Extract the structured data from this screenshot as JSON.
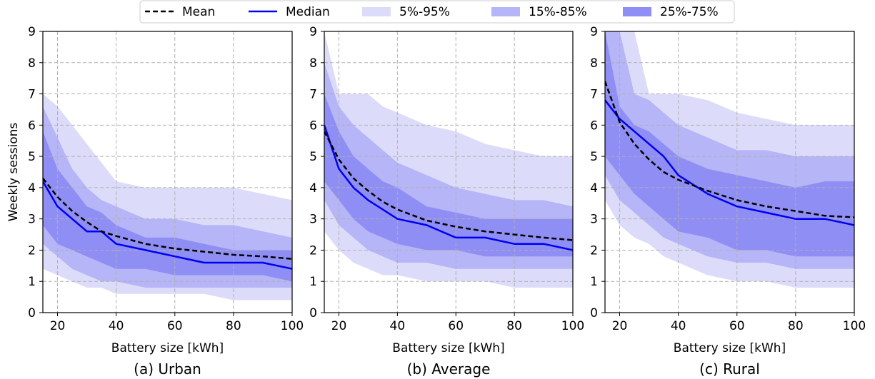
{
  "legend": {
    "placement": "top-center",
    "entries": [
      {
        "key": "mean",
        "label": "Mean",
        "style": "dashed",
        "color": "#000000"
      },
      {
        "key": "median",
        "label": "Median",
        "style": "solid",
        "color": "#0000ee"
      },
      {
        "key": "p5_95",
        "label": "5%-95%",
        "style": "band",
        "color": "#dcdcfa"
      },
      {
        "key": "p15_85",
        "label": "15%-85%",
        "style": "band",
        "color": "#b5b5f7"
      },
      {
        "key": "p25_75",
        "label": "25%-75%",
        "style": "band",
        "color": "#8e8ef4"
      }
    ]
  },
  "colors": {
    "band_5_95": "#dcdcfa",
    "band_15_85": "#b5b5f7",
    "band_25_75": "#8e8ef4",
    "median": "#0000ee",
    "mean": "#000000",
    "grid": "#b0b0b0"
  },
  "chart_data": [
    {
      "type": "area",
      "caption": "(a) Urban",
      "xlabel": "Battery size [kWh]",
      "ylabel": "Weekly sessions",
      "xlim": [
        15,
        100
      ],
      "ylim": [
        0,
        9
      ],
      "xticks": [
        20,
        40,
        60,
        80,
        100
      ],
      "yticks": [
        0,
        1,
        2,
        3,
        4,
        5,
        6,
        7,
        8,
        9
      ],
      "grid": true,
      "x": [
        15,
        20,
        25,
        30,
        35,
        40,
        50,
        60,
        70,
        80,
        90,
        100
      ],
      "mean": [
        4.3,
        3.7,
        3.25,
        2.9,
        2.6,
        2.45,
        2.2,
        2.05,
        1.95,
        1.85,
        1.8,
        1.72
      ],
      "median": [
        4.2,
        3.4,
        3.0,
        2.6,
        2.6,
        2.2,
        2.0,
        1.8,
        1.6,
        1.6,
        1.6,
        1.4
      ],
      "band_5_95": {
        "lower": [
          1.4,
          1.2,
          1.0,
          0.8,
          0.8,
          0.6,
          0.6,
          0.6,
          0.6,
          0.4,
          0.4,
          0.4
        ],
        "upper": [
          7.0,
          6.6,
          6.0,
          5.4,
          4.8,
          4.2,
          4.0,
          4.0,
          4.0,
          4.0,
          3.8,
          3.6
        ]
      },
      "band_15_85": {
        "lower": [
          2.2,
          1.8,
          1.4,
          1.2,
          1.0,
          1.0,
          0.8,
          0.8,
          0.8,
          0.8,
          0.8,
          0.8
        ],
        "upper": [
          6.6,
          5.6,
          4.6,
          4.0,
          3.6,
          3.4,
          3.0,
          3.0,
          2.8,
          2.8,
          2.6,
          2.4
        ]
      },
      "band_25_75": {
        "lower": [
          2.8,
          2.2,
          2.0,
          1.8,
          1.6,
          1.4,
          1.4,
          1.2,
          1.2,
          1.2,
          1.2,
          1.0
        ],
        "upper": [
          5.8,
          4.6,
          4.0,
          3.4,
          3.2,
          2.8,
          2.4,
          2.4,
          2.2,
          2.0,
          2.0,
          2.0
        ]
      }
    },
    {
      "type": "area",
      "caption": "(b) Average",
      "xlabel": "Battery size [kWh]",
      "ylabel": "",
      "xlim": [
        15,
        100
      ],
      "ylim": [
        0,
        9
      ],
      "xticks": [
        20,
        40,
        60,
        80,
        100
      ],
      "yticks": [
        0,
        1,
        2,
        3,
        4,
        5,
        6,
        7,
        8,
        9
      ],
      "grid": true,
      "x": [
        15,
        20,
        25,
        30,
        35,
        40,
        50,
        60,
        70,
        80,
        90,
        100
      ],
      "mean": [
        5.8,
        4.9,
        4.3,
        3.9,
        3.55,
        3.3,
        2.95,
        2.75,
        2.6,
        2.5,
        2.4,
        2.32
      ],
      "median": [
        6.0,
        4.6,
        4.0,
        3.6,
        3.3,
        3.0,
        2.8,
        2.4,
        2.4,
        2.2,
        2.2,
        2.0
      ],
      "band_5_95": {
        "lower": [
          2.6,
          2.0,
          1.6,
          1.4,
          1.2,
          1.2,
          1.0,
          1.0,
          1.0,
          0.8,
          0.8,
          0.8
        ],
        "upper": [
          9.0,
          7.0,
          7.0,
          7.0,
          6.6,
          6.4,
          6.0,
          5.8,
          5.4,
          5.2,
          5.0,
          5.0
        ]
      },
      "band_15_85": {
        "lower": [
          3.6,
          2.8,
          2.4,
          2.0,
          1.8,
          1.6,
          1.6,
          1.4,
          1.4,
          1.4,
          1.4,
          1.4
        ],
        "upper": [
          8.0,
          6.6,
          6.0,
          5.6,
          5.2,
          4.8,
          4.4,
          4.0,
          3.8,
          3.6,
          3.6,
          3.4
        ]
      },
      "band_25_75": {
        "lower": [
          4.2,
          3.6,
          3.0,
          2.6,
          2.4,
          2.2,
          2.0,
          2.0,
          1.8,
          1.8,
          1.8,
          1.8
        ],
        "upper": [
          7.0,
          5.8,
          5.0,
          4.6,
          4.2,
          4.0,
          3.4,
          3.2,
          3.0,
          3.0,
          3.0,
          3.0
        ]
      }
    },
    {
      "type": "area",
      "caption": "(c) Rural",
      "xlabel": "Battery size [kWh]",
      "ylabel": "",
      "xlim": [
        15,
        100
      ],
      "ylim": [
        0,
        9
      ],
      "xticks": [
        20,
        40,
        60,
        80,
        100
      ],
      "yticks": [
        0,
        1,
        2,
        3,
        4,
        5,
        6,
        7,
        8,
        9
      ],
      "grid": true,
      "x": [
        15,
        20,
        25,
        30,
        35,
        40,
        50,
        60,
        70,
        80,
        90,
        100
      ],
      "mean": [
        7.4,
        6.1,
        5.4,
        4.9,
        4.5,
        4.25,
        3.9,
        3.6,
        3.4,
        3.25,
        3.1,
        3.05
      ],
      "median": [
        6.8,
        6.2,
        5.8,
        5.4,
        5.0,
        4.4,
        3.8,
        3.4,
        3.2,
        3.0,
        3.0,
        2.8
      ],
      "band_5_95": {
        "lower": [
          3.6,
          2.8,
          2.4,
          2.2,
          1.8,
          1.6,
          1.2,
          1.0,
          1.0,
          0.8,
          0.8,
          0.8
        ],
        "upper": [
          9.0,
          9.0,
          9.0,
          7.0,
          7.0,
          7.0,
          6.8,
          6.4,
          6.2,
          6.0,
          6.0,
          6.0
        ]
      },
      "band_15_85": {
        "lower": [
          4.4,
          3.6,
          3.2,
          2.8,
          2.4,
          2.2,
          1.8,
          1.6,
          1.6,
          1.4,
          1.4,
          1.4
        ],
        "upper": [
          9.0,
          9.0,
          7.0,
          6.8,
          6.4,
          6.0,
          5.6,
          5.2,
          5.2,
          5.0,
          5.0,
          5.0
        ]
      },
      "band_25_75": {
        "lower": [
          5.0,
          4.4,
          3.8,
          3.4,
          3.0,
          2.6,
          2.4,
          2.0,
          2.0,
          1.8,
          1.8,
          1.8
        ],
        "upper": [
          9.0,
          6.6,
          6.0,
          5.8,
          5.4,
          5.0,
          4.6,
          4.4,
          4.2,
          4.0,
          4.2,
          4.2
        ]
      }
    }
  ]
}
